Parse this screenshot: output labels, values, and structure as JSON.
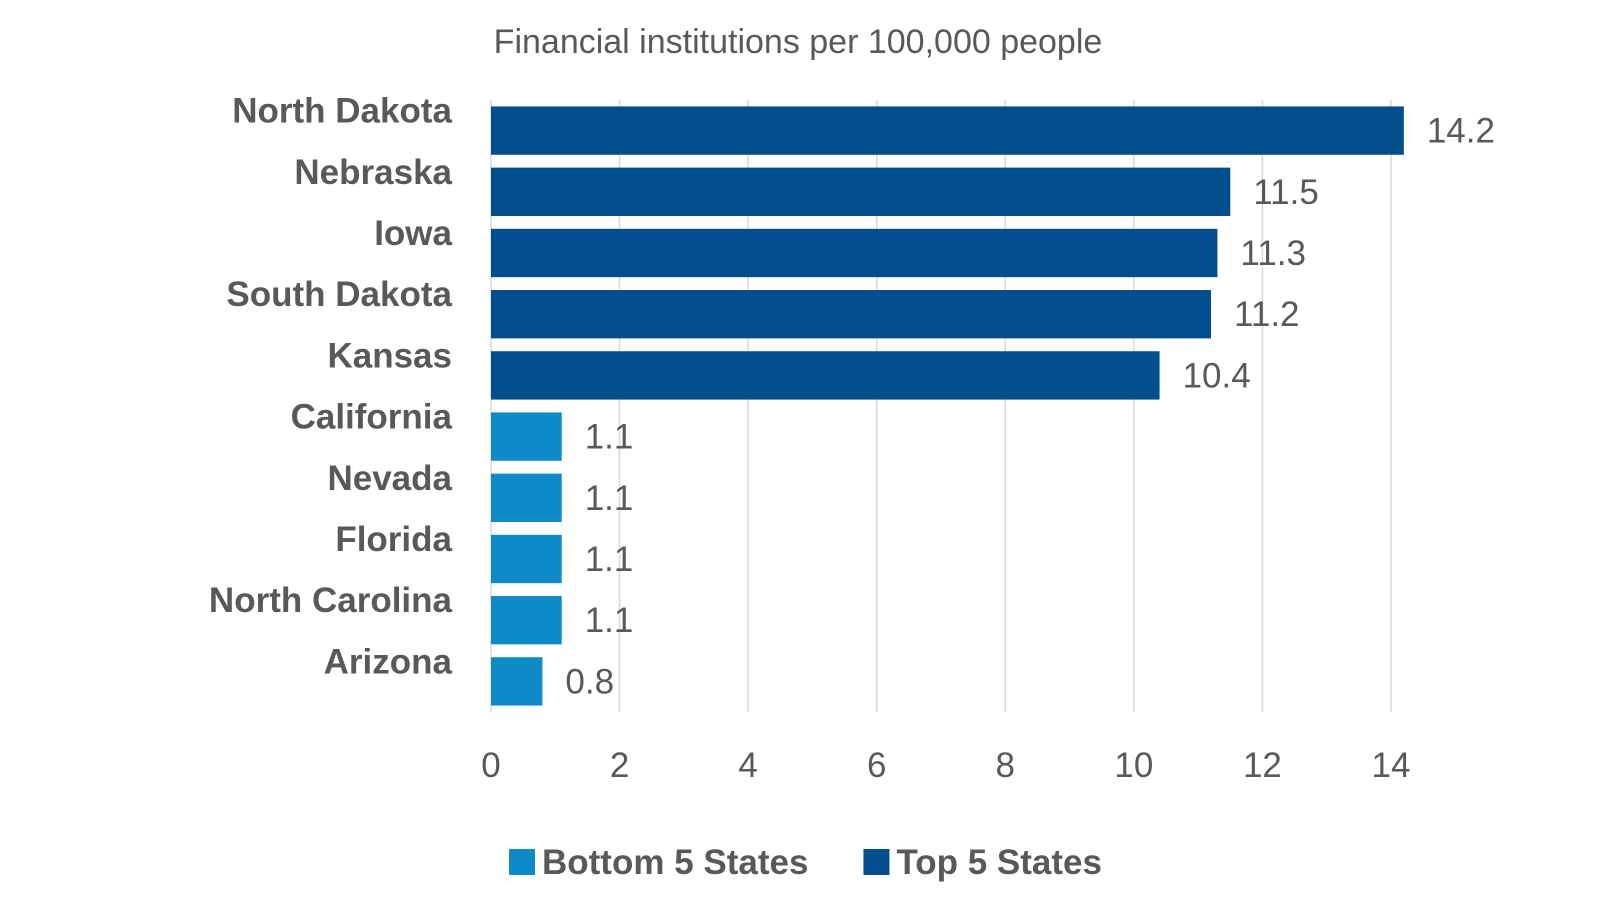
{
  "chart_data": {
    "type": "bar",
    "orientation": "horizontal",
    "title": "Financial institutions per 100,000 people",
    "categories": [
      "North Dakota",
      "Nebraska",
      "Iowa",
      "South Dakota",
      "Kansas",
      "California",
      "Nevada",
      "Florida",
      "North Carolina",
      "Arizona"
    ],
    "values": [
      14.2,
      11.5,
      11.3,
      11.2,
      10.4,
      1.1,
      1.1,
      1.1,
      1.1,
      0.8
    ],
    "data_labels": [
      "14.2",
      "11.5",
      "11.3",
      "11.2",
      "10.4",
      "1.1",
      "1.1",
      "1.1",
      "1.1",
      "0.8"
    ],
    "groups": [
      "Top 5 States",
      "Top 5 States",
      "Top 5 States",
      "Top 5 States",
      "Top 5 States",
      "Bottom 5 States",
      "Bottom 5 States",
      "Bottom 5 States",
      "Bottom 5 States",
      "Bottom 5 States"
    ],
    "series": [
      {
        "name": "Bottom 5 States",
        "color": "#0e8ac8"
      },
      {
        "name": "Top 5 States",
        "color": "#034e8c"
      }
    ],
    "xticks": [
      0,
      2,
      4,
      6,
      8,
      10,
      12,
      14
    ],
    "xtick_labels": [
      "0",
      "2",
      "4",
      "6",
      "8",
      "10",
      "12",
      "14"
    ],
    "xlim": [
      0,
      14
    ],
    "grid": "vertical",
    "legend_position": "bottom",
    "xlabel": "",
    "ylabel": ""
  }
}
